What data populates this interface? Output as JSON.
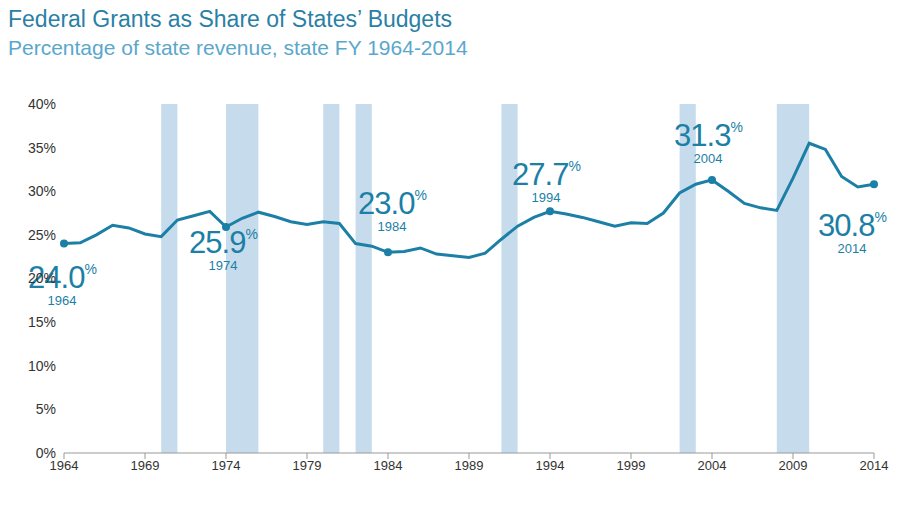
{
  "chart_data": {
    "type": "line",
    "title": "Federal Grants as Share of States’ Budgets",
    "subtitle": "Percentage of state revenue, state FY 1964-2014",
    "x": [
      1964,
      1965,
      1966,
      1967,
      1968,
      1969,
      1970,
      1971,
      1972,
      1973,
      1974,
      1975,
      1976,
      1977,
      1978,
      1979,
      1980,
      1981,
      1982,
      1983,
      1984,
      1985,
      1986,
      1987,
      1988,
      1989,
      1990,
      1991,
      1992,
      1993,
      1994,
      1995,
      1996,
      1997,
      1998,
      1999,
      2000,
      2001,
      2002,
      2003,
      2004,
      2005,
      2006,
      2007,
      2008,
      2009,
      2010,
      2011,
      2012,
      2013,
      2014
    ],
    "values": [
      24.0,
      24.1,
      25.0,
      26.1,
      25.8,
      25.1,
      24.8,
      26.7,
      27.2,
      27.7,
      25.9,
      26.9,
      27.6,
      27.1,
      26.5,
      26.2,
      26.5,
      26.3,
      24.0,
      23.7,
      23.0,
      23.1,
      23.5,
      22.8,
      22.6,
      22.4,
      22.9,
      24.5,
      26.0,
      27.0,
      27.7,
      27.4,
      27.0,
      26.5,
      26.0,
      26.4,
      26.3,
      27.5,
      29.8,
      30.8,
      31.3,
      30.0,
      28.6,
      28.1,
      27.8,
      31.5,
      35.5,
      34.8,
      31.7,
      30.5,
      30.8
    ],
    "color": "#1b7fa6",
    "xlim": [
      1964,
      2014
    ],
    "xticks": [
      1964,
      1969,
      1974,
      1979,
      1984,
      1989,
      1994,
      1999,
      2004,
      2009,
      2014
    ],
    "ylim": [
      0,
      40
    ],
    "yticks": [
      {
        "value": 0,
        "label": "0%"
      },
      {
        "value": 5,
        "label": "5%"
      },
      {
        "value": 10,
        "label": "10%"
      },
      {
        "value": 15,
        "label": "15%"
      },
      {
        "value": 20,
        "label": "20%"
      },
      {
        "value": 25,
        "label": "25%"
      },
      {
        "value": 30,
        "label": "30%"
      },
      {
        "value": 35,
        "label": "35%"
      },
      {
        "value": 40,
        "label": "40%"
      }
    ],
    "grid": false,
    "shaded_ranges": [
      [
        1970,
        1971
      ],
      [
        1974,
        1976
      ],
      [
        1980,
        1981
      ],
      [
        1982,
        1983
      ],
      [
        1991,
        1992
      ],
      [
        2002,
        2003
      ],
      [
        2008,
        2010
      ]
    ],
    "annotations": [
      {
        "x": 1964,
        "value": 24.0,
        "label": "24.0%",
        "sublabel": "1964"
      },
      {
        "x": 1974,
        "value": 25.9,
        "label": "25.9%",
        "sublabel": "1974"
      },
      {
        "x": 1984,
        "value": 23.0,
        "label": "23.0%",
        "sublabel": "1984"
      },
      {
        "x": 1994,
        "value": 27.7,
        "label": "27.7%",
        "sublabel": "1994"
      },
      {
        "x": 2004,
        "value": 31.3,
        "label": "31.3%",
        "sublabel": "2004"
      },
      {
        "x": 2014,
        "value": 30.8,
        "label": "30.8%",
        "sublabel": "2014"
      }
    ]
  }
}
